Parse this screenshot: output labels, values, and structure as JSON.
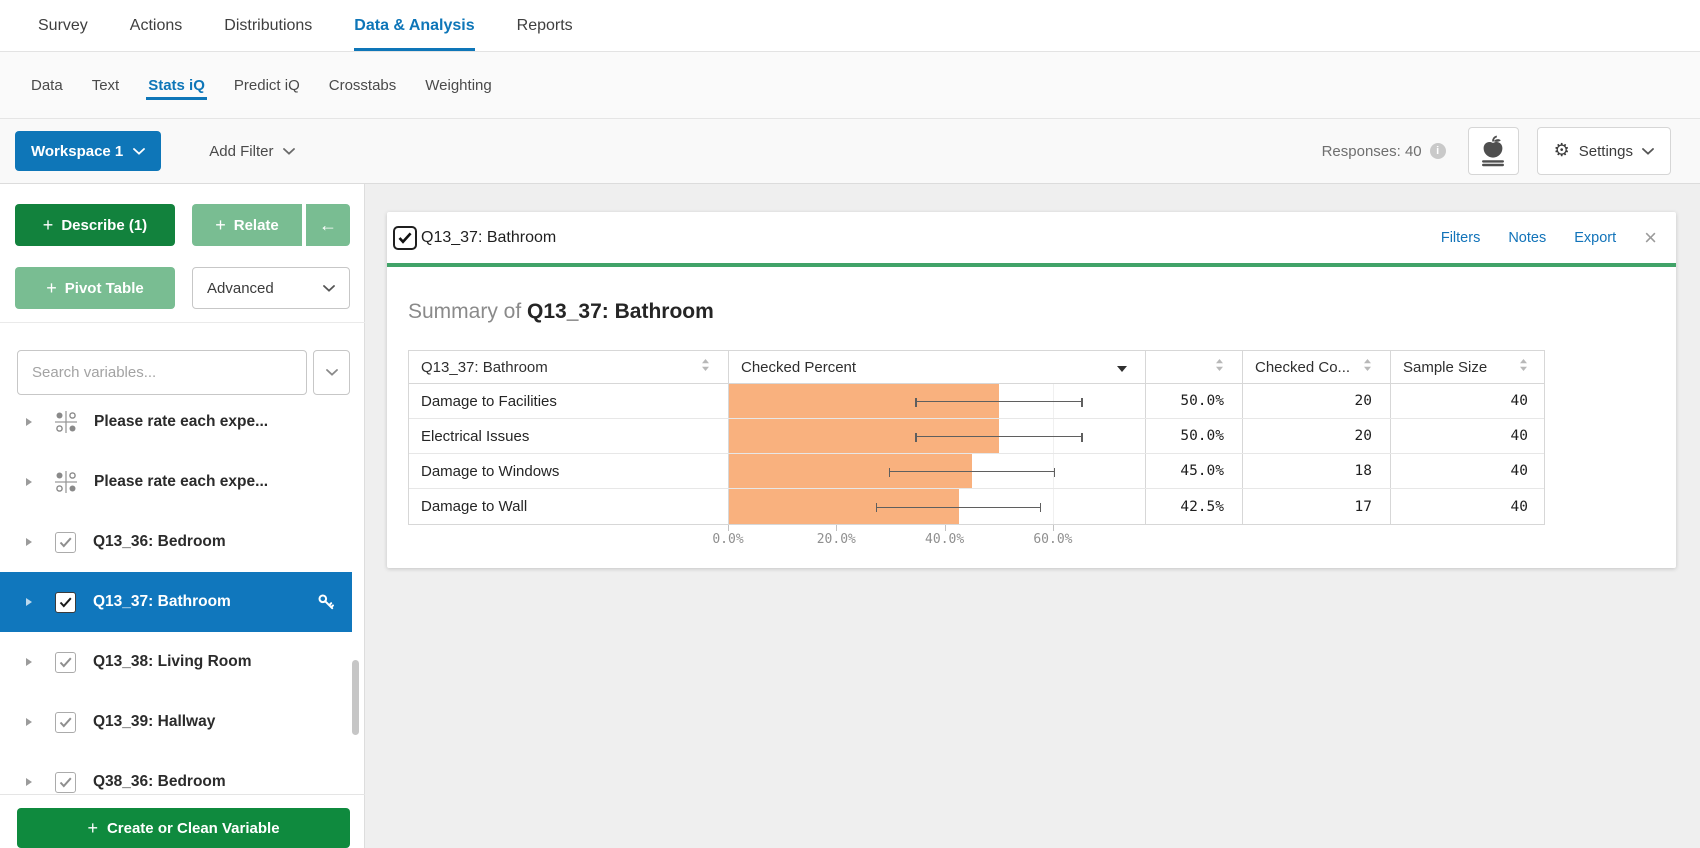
{
  "top_nav": {
    "active": "Data & Analysis",
    "items": [
      {
        "label": "Survey"
      },
      {
        "label": "Actions"
      },
      {
        "label": "Distributions"
      },
      {
        "label": "Data & Analysis"
      },
      {
        "label": "Reports"
      }
    ]
  },
  "sub_nav": {
    "active": "Stats iQ",
    "items": [
      {
        "label": "Data"
      },
      {
        "label": "Text"
      },
      {
        "label": "Stats iQ"
      },
      {
        "label": "Predict iQ"
      },
      {
        "label": "Crosstabs"
      },
      {
        "label": "Weighting"
      }
    ]
  },
  "toolbar": {
    "workspace_label": "Workspace 1",
    "add_filter_label": "Add Filter",
    "responses_label": "Responses: 40",
    "info_glyph": "i",
    "settings_label": "Settings",
    "gear_glyph": "⚙"
  },
  "sidebar": {
    "plus": "+",
    "describe_label": "Describe (1)",
    "relate_label": "Relate",
    "back_arrow": "←",
    "pivot_label": "Pivot Table",
    "advanced_label": "Advanced",
    "search_placeholder": "Search variables...",
    "create_label": "Create or Clean Variable",
    "items": [
      {
        "label": "Please rate each expe...",
        "icon": "matrix",
        "expandable": true,
        "checked": null,
        "selected": false,
        "key": false
      },
      {
        "label": "Please rate each expe...",
        "icon": "matrix",
        "expandable": true,
        "checked": null,
        "selected": false,
        "key": false
      },
      {
        "label": "Q13_36: Bedroom",
        "icon": "checkbox",
        "expandable": true,
        "checked": true,
        "selected": false,
        "key": false
      },
      {
        "label": "Q13_37: Bathroom",
        "icon": "checkbox",
        "expandable": true,
        "checked": true,
        "selected": true,
        "key": true
      },
      {
        "label": "Q13_38: Living Room",
        "icon": "checkbox",
        "expandable": true,
        "checked": true,
        "selected": false,
        "key": false
      },
      {
        "label": "Q13_39: Hallway",
        "icon": "checkbox",
        "expandable": true,
        "checked": true,
        "selected": false,
        "key": false
      },
      {
        "label": "Q38_36: Bedroom",
        "icon": "checkbox",
        "expandable": true,
        "checked": true,
        "selected": false,
        "key": false
      }
    ]
  },
  "card": {
    "title": "Q13_37: Bathroom",
    "checkbox_checked": true,
    "actions": [
      {
        "label": "Filters"
      },
      {
        "label": "Notes"
      },
      {
        "label": "Export"
      }
    ],
    "close_glyph": "×",
    "summary_prefix": "Summary of",
    "summary_subject": "Q13_37: Bathroom"
  },
  "chart_data": {
    "type": "bar",
    "orientation": "horizontal",
    "title": "Summary of Q13_37: Bathroom",
    "columns": [
      {
        "label": "Q13_37: Bathroom",
        "sort": true,
        "caret": false
      },
      {
        "label": "Checked Percent",
        "sort": false,
        "caret": true
      },
      {
        "label": "",
        "sort": true,
        "caret": false
      },
      {
        "label": "Checked Co...",
        "sort": true,
        "caret": false
      },
      {
        "label": "Sample Size",
        "sort": true,
        "caret": false
      }
    ],
    "categories": [
      "Damage to Facilities",
      "Electrical Issues",
      "Damage to Windows",
      "Damage to Wall"
    ],
    "series": [
      {
        "name": "Checked Percent",
        "values": [
          50.0,
          50.0,
          45.0,
          42.5
        ]
      },
      {
        "name": "Checked Count",
        "values": [
          20,
          20,
          18,
          17
        ]
      },
      {
        "name": "Sample Size",
        "values": [
          40,
          40,
          40,
          40
        ]
      }
    ],
    "percent_labels": [
      "50.0%",
      "50.0%",
      "45.0%",
      "42.5%"
    ],
    "count_labels": [
      "20",
      "20",
      "18",
      "17"
    ],
    "sample_labels": [
      "40",
      "40",
      "40",
      "40"
    ],
    "error_bars": {
      "low": [
        34.5,
        34.5,
        29.6,
        27.2
      ],
      "high": [
        65.5,
        65.5,
        60.4,
        57.8
      ]
    },
    "x_ticks": [
      {
        "value": 0,
        "label": "0.0%"
      },
      {
        "value": 20,
        "label": "20.0%"
      },
      {
        "value": 40,
        "label": "40.0%"
      },
      {
        "value": 60,
        "label": "60.0%"
      }
    ],
    "xlim": [
      0,
      77
    ],
    "grid": true,
    "legend": "none",
    "bar_color": "#F9B17E"
  },
  "colors": {
    "accent": "#0E76B8",
    "selected-blue": "#1077BD",
    "dark-green": "#12823D",
    "light-green": "#79BD92",
    "create-green": "#0F8A3E",
    "summary-green": "#41A368",
    "bar-orange": "#F9B17E",
    "link-blue": "#1173B9"
  }
}
